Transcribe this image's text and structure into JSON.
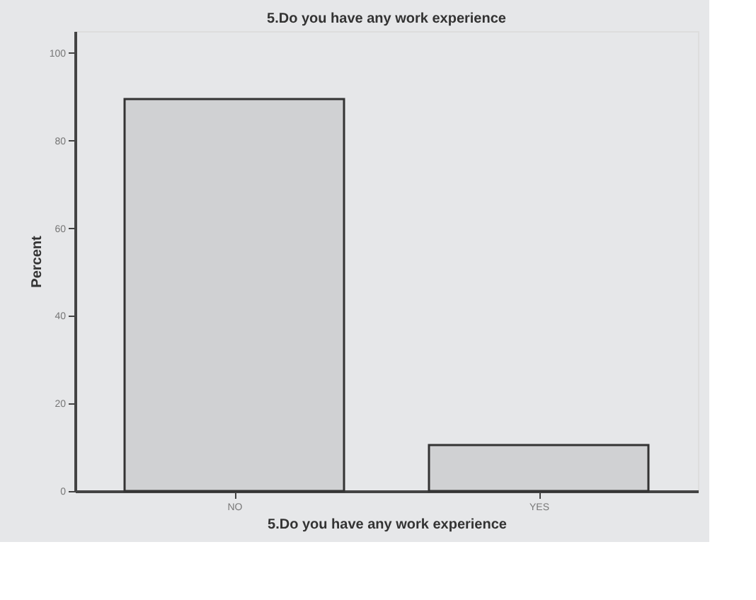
{
  "chart_data": {
    "type": "bar",
    "title": "5.Do you have any work experience",
    "xlabel": "5.Do you have any work experience",
    "ylabel": "Percent",
    "categories": [
      "NO",
      "YES"
    ],
    "values": [
      89.5,
      10.5
    ],
    "color": "#d0d1d3",
    "ylim": [
      0,
      105
    ],
    "yticks": [
      0,
      20,
      40,
      60,
      80,
      100
    ],
    "grid": false
  }
}
